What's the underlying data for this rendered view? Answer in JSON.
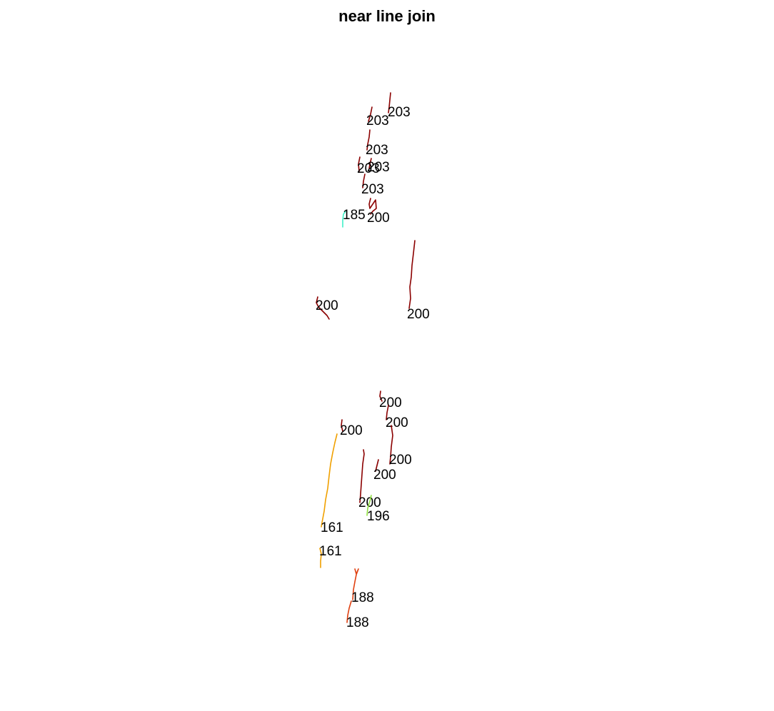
{
  "title": "near line join",
  "colors": {
    "161": "#f0a000",
    "185": "#40f0c8",
    "188": "#e04010",
    "196": "#90e040",
    "200": "#8b0000",
    "203": "#8b0000"
  },
  "segments": [
    {
      "label": "203",
      "color": "#8b0000"
    },
    {
      "label": "203",
      "color": "#8b0000"
    },
    {
      "label": "203",
      "color": "#8b0000"
    },
    {
      "label": "203",
      "color": "#8b0000"
    },
    {
      "label": "203",
      "color": "#8b0000"
    },
    {
      "label": "203",
      "color": "#8b0000"
    },
    {
      "label": "185",
      "color": "#40f0c8"
    },
    {
      "label": "200",
      "color": "#8b0000"
    },
    {
      "label": "200",
      "color": "#8b0000"
    },
    {
      "label": "200",
      "color": "#8b0000"
    },
    {
      "label": "200",
      "color": "#8b0000"
    },
    {
      "label": "200",
      "color": "#8b0000"
    },
    {
      "label": "200",
      "color": "#8b0000"
    },
    {
      "label": "200",
      "color": "#8b0000"
    },
    {
      "label": "200",
      "color": "#8b0000"
    },
    {
      "label": "200",
      "color": "#8b0000"
    },
    {
      "label": "196",
      "color": "#90e040"
    },
    {
      "label": "161",
      "color": "#f0a000"
    },
    {
      "label": "161",
      "color": "#f0a000"
    },
    {
      "label": "188",
      "color": "#e04010"
    },
    {
      "label": "188",
      "color": "#e04010"
    }
  ]
}
